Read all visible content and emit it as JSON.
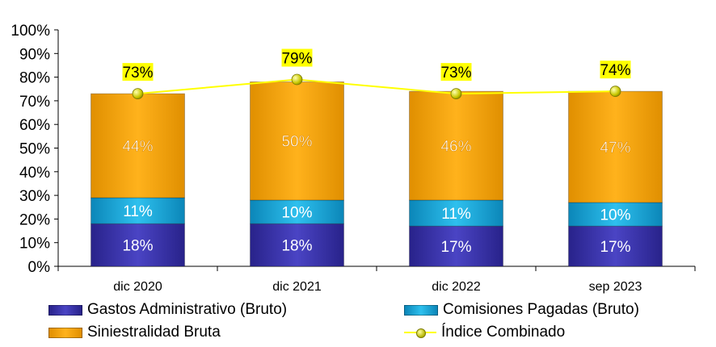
{
  "chart_data": {
    "type": "bar",
    "stacked": true,
    "categories": [
      "dic 2020",
      "dic 2021",
      "dic 2022",
      "sep 2023"
    ],
    "series": [
      {
        "name": "Gastos Administrativo (Bruto)",
        "kind": "bar",
        "color": "#3a33a6",
        "values": [
          18,
          18,
          17,
          17
        ],
        "labels": [
          "18%",
          "18%",
          "17%",
          "17%"
        ]
      },
      {
        "name": "Comisiones Pagadas (Bruto)",
        "kind": "bar",
        "color": "#12a5d8",
        "values": [
          11,
          10,
          11,
          10
        ],
        "labels": [
          "11%",
          "10%",
          "11%",
          "10%"
        ]
      },
      {
        "name": "Siniestralidad Bruta",
        "kind": "bar",
        "color": "#ffa500",
        "values": [
          44,
          50,
          46,
          47
        ],
        "labels": [
          "44%",
          "50%",
          "46%",
          "47%"
        ]
      },
      {
        "name": "Índice Combinado",
        "kind": "line",
        "color": "#ffff00",
        "values": [
          73,
          79,
          73,
          74
        ],
        "labels": [
          "73%",
          "79%",
          "73%",
          "74%"
        ]
      }
    ],
    "yticks": [
      "0%",
      "10%",
      "20%",
      "30%",
      "40%",
      "50%",
      "60%",
      "70%",
      "80%",
      "90%",
      "100%"
    ],
    "ylim": [
      0,
      100
    ],
    "legend_position": "bottom",
    "grid": false
  }
}
